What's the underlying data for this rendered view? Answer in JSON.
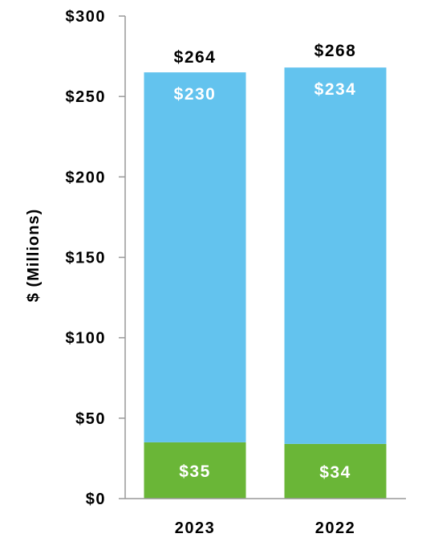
{
  "chart_data": {
    "type": "bar",
    "stacked": true,
    "categories": [
      "2023",
      "2022"
    ],
    "series": [
      {
        "values": [
          35,
          34
        ],
        "labels": [
          "$35",
          "$34"
        ],
        "color": "#6ab637"
      },
      {
        "values": [
          230,
          234
        ],
        "labels": [
          "$230",
          "$234"
        ],
        "color": "#63c3ee"
      }
    ],
    "totals": [
      264,
      268
    ],
    "total_labels": [
      "$264",
      "$268"
    ],
    "ylabel": "$ (Millions)",
    "ylim": [
      0,
      300
    ],
    "yticks": [
      0,
      50,
      100,
      150,
      200,
      250,
      300
    ],
    "ytick_labels": [
      "$0",
      "$50",
      "$100",
      "$150",
      "$200",
      "$250",
      "$300"
    ],
    "grid": false,
    "legend": "none"
  }
}
